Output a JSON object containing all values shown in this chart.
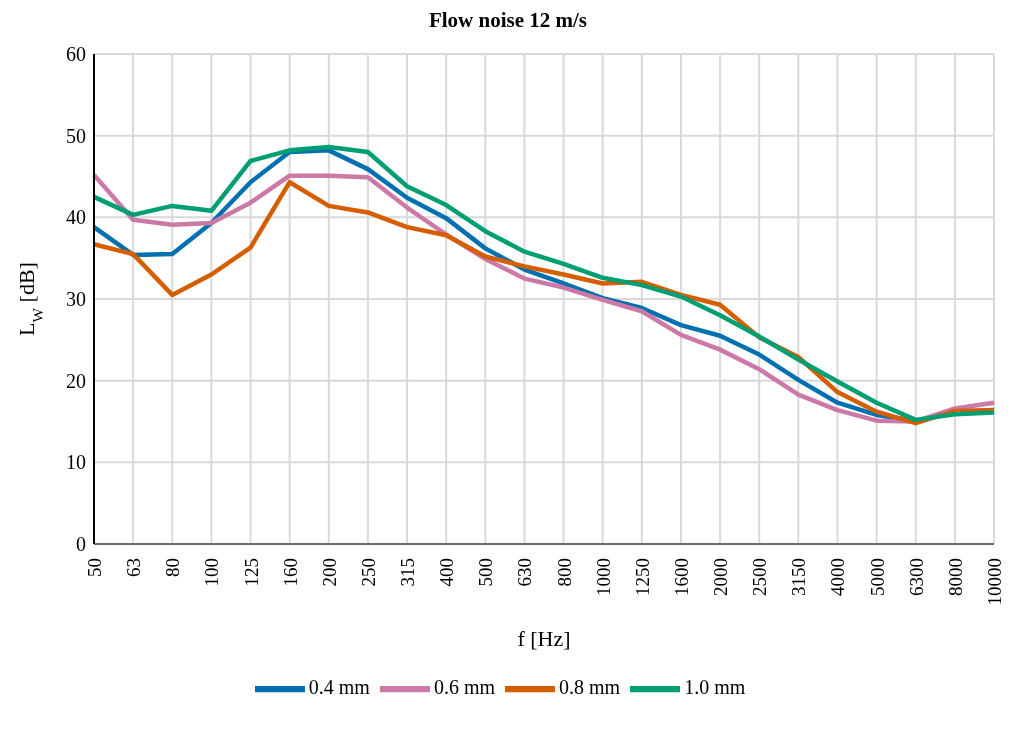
{
  "chart_data": {
    "type": "line",
    "title": "Flow noise 12 m/s",
    "xlabel": "f [Hz]",
    "ylabel": "L$_{W}$ [dB]",
    "categories": [
      "50",
      "63",
      "80",
      "100",
      "125",
      "160",
      "200",
      "250",
      "315",
      "400",
      "500",
      "630",
      "800",
      "1000",
      "1250",
      "1600",
      "2000",
      "2500",
      "3150",
      "4000",
      "5000",
      "6300",
      "8000",
      "10000"
    ],
    "series": [
      {
        "name": "0.4 mm",
        "color": "#0070b0",
        "values": [
          38.8,
          35.4,
          35.5,
          39.3,
          44.3,
          48.0,
          48.2,
          45.9,
          42.4,
          39.9,
          36.2,
          33.6,
          31.9,
          30.1,
          28.9,
          26.8,
          25.5,
          23.2,
          20.1,
          17.3,
          15.8,
          15.1,
          null,
          null
        ]
      },
      {
        "name": "0.6 mm",
        "color": "#cc79a7",
        "values": [
          45.2,
          39.7,
          39.1,
          39.3,
          41.8,
          45.1,
          45.1,
          44.9,
          41.2,
          37.9,
          34.9,
          32.5,
          31.4,
          29.9,
          28.5,
          25.6,
          23.8,
          21.4,
          18.3,
          16.4,
          15.1,
          15.0,
          16.6,
          17.3
        ]
      },
      {
        "name": "0.8 mm",
        "color": "#d55e00",
        "values": [
          36.7,
          35.5,
          30.5,
          33.0,
          36.3,
          44.3,
          41.4,
          40.6,
          38.8,
          37.8,
          35.2,
          34.0,
          33.0,
          31.9,
          32.1,
          30.5,
          29.3,
          25.3,
          22.9,
          18.6,
          16.2,
          14.8,
          16.3,
          16.4
        ]
      },
      {
        "name": "1.0 mm",
        "color": "#009e73",
        "values": [
          42.5,
          40.3,
          41.4,
          40.8,
          46.9,
          48.2,
          48.6,
          48.0,
          43.8,
          41.5,
          38.3,
          35.8,
          34.3,
          32.6,
          31.7,
          30.3,
          28.0,
          25.4,
          22.6,
          19.9,
          17.3,
          15.2,
          15.9,
          16.1
        ]
      }
    ],
    "ylim": [
      0,
      60
    ],
    "yticks": [
      0,
      10,
      20,
      30,
      40,
      50,
      60
    ],
    "grid": true,
    "legend": "bottom",
    "marker": "none",
    "line_style": "solid"
  }
}
